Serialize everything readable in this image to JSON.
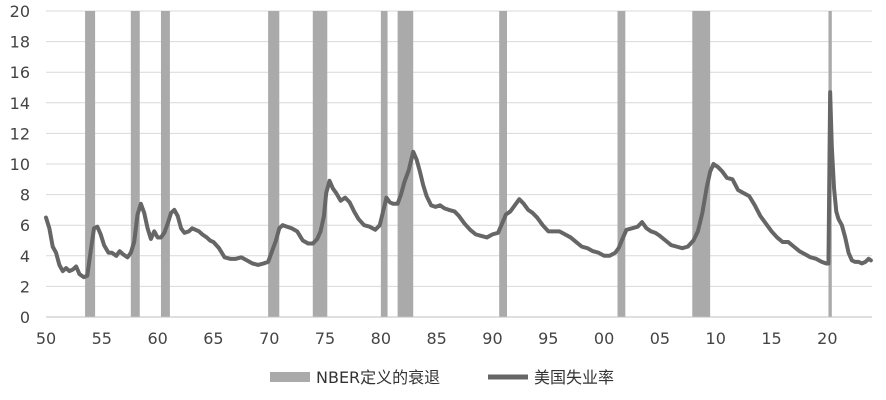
{
  "chart_data": {
    "type": "line",
    "title": "",
    "xlabel": "",
    "ylabel": "",
    "xlim": [
      1950,
      2024
    ],
    "ylim": [
      0,
      20
    ],
    "x_ticks": [
      {
        "value": 1950,
        "label": "50"
      },
      {
        "value": 1955,
        "label": "55"
      },
      {
        "value": 1960,
        "label": "60"
      },
      {
        "value": 1965,
        "label": "65"
      },
      {
        "value": 1970,
        "label": "70"
      },
      {
        "value": 1975,
        "label": "75"
      },
      {
        "value": 1980,
        "label": "80"
      },
      {
        "value": 1985,
        "label": "85"
      },
      {
        "value": 1990,
        "label": "90"
      },
      {
        "value": 1995,
        "label": "95"
      },
      {
        "value": 2000,
        "label": "00"
      },
      {
        "value": 2005,
        "label": "05"
      },
      {
        "value": 2010,
        "label": "10"
      },
      {
        "value": 2015,
        "label": "15"
      },
      {
        "value": 2020,
        "label": "20"
      }
    ],
    "y_ticks": [
      {
        "value": 0,
        "label": "0"
      },
      {
        "value": 2,
        "label": "2"
      },
      {
        "value": 4,
        "label": "4"
      },
      {
        "value": 6,
        "label": "6"
      },
      {
        "value": 8,
        "label": "8"
      },
      {
        "value": 10,
        "label": "10"
      },
      {
        "value": 12,
        "label": "12"
      },
      {
        "value": 14,
        "label": "14"
      },
      {
        "value": 16,
        "label": "16"
      },
      {
        "value": 18,
        "label": "18"
      },
      {
        "value": 20,
        "label": "20"
      }
    ],
    "grid": "horizontal",
    "legend_position": "bottom",
    "recessions": {
      "name": "NBER定义的衰退",
      "color": "#aaaaaa",
      "periods": [
        [
          1953.5,
          1954.4
        ],
        [
          1957.6,
          1958.4
        ],
        [
          1960.3,
          1961.1
        ],
        [
          1969.9,
          1970.9
        ],
        [
          1973.9,
          1975.2
        ],
        [
          1980.0,
          1980.6
        ],
        [
          1981.5,
          1982.9
        ],
        [
          1990.6,
          1991.3
        ],
        [
          2001.2,
          2001.9
        ],
        [
          2007.9,
          2009.5
        ],
        [
          2020.1,
          2020.4
        ]
      ]
    },
    "series": [
      {
        "name": "美国失业率",
        "color": "#666666",
        "points": [
          [
            1950.0,
            6.5
          ],
          [
            1950.3,
            5.8
          ],
          [
            1950.6,
            4.6
          ],
          [
            1950.9,
            4.2
          ],
          [
            1951.2,
            3.4
          ],
          [
            1951.5,
            3.0
          ],
          [
            1951.8,
            3.2
          ],
          [
            1952.1,
            3.0
          ],
          [
            1952.4,
            3.1
          ],
          [
            1952.7,
            3.3
          ],
          [
            1953.0,
            2.8
          ],
          [
            1953.4,
            2.6
          ],
          [
            1953.7,
            2.7
          ],
          [
            1954.0,
            4.3
          ],
          [
            1954.3,
            5.8
          ],
          [
            1954.6,
            5.9
          ],
          [
            1954.9,
            5.4
          ],
          [
            1955.2,
            4.7
          ],
          [
            1955.6,
            4.2
          ],
          [
            1955.9,
            4.2
          ],
          [
            1956.3,
            4.0
          ],
          [
            1956.6,
            4.3
          ],
          [
            1956.9,
            4.1
          ],
          [
            1957.3,
            3.9
          ],
          [
            1957.6,
            4.2
          ],
          [
            1957.9,
            4.9
          ],
          [
            1958.2,
            6.7
          ],
          [
            1958.5,
            7.4
          ],
          [
            1958.8,
            6.8
          ],
          [
            1959.1,
            5.8
          ],
          [
            1959.4,
            5.1
          ],
          [
            1959.7,
            5.6
          ],
          [
            1960.0,
            5.2
          ],
          [
            1960.3,
            5.2
          ],
          [
            1960.6,
            5.5
          ],
          [
            1960.9,
            6.1
          ],
          [
            1961.2,
            6.8
          ],
          [
            1961.5,
            7.0
          ],
          [
            1961.8,
            6.6
          ],
          [
            1962.1,
            5.8
          ],
          [
            1962.4,
            5.5
          ],
          [
            1962.8,
            5.6
          ],
          [
            1963.1,
            5.8
          ],
          [
            1963.4,
            5.7
          ],
          [
            1963.7,
            5.6
          ],
          [
            1964.0,
            5.4
          ],
          [
            1964.4,
            5.2
          ],
          [
            1964.7,
            5.0
          ],
          [
            1965.0,
            4.9
          ],
          [
            1965.5,
            4.5
          ],
          [
            1966.0,
            3.9
          ],
          [
            1966.5,
            3.8
          ],
          [
            1967.0,
            3.8
          ],
          [
            1967.5,
            3.9
          ],
          [
            1968.0,
            3.7
          ],
          [
            1968.5,
            3.5
          ],
          [
            1969.0,
            3.4
          ],
          [
            1969.5,
            3.5
          ],
          [
            1969.9,
            3.6
          ],
          [
            1970.3,
            4.4
          ],
          [
            1970.6,
            5.0
          ],
          [
            1970.9,
            5.8
          ],
          [
            1971.2,
            6.0
          ],
          [
            1971.6,
            5.9
          ],
          [
            1972.0,
            5.8
          ],
          [
            1972.5,
            5.6
          ],
          [
            1973.0,
            5.0
          ],
          [
            1973.5,
            4.8
          ],
          [
            1973.9,
            4.8
          ],
          [
            1974.3,
            5.1
          ],
          [
            1974.6,
            5.6
          ],
          [
            1974.9,
            6.6
          ],
          [
            1975.1,
            8.1
          ],
          [
            1975.4,
            8.9
          ],
          [
            1975.7,
            8.4
          ],
          [
            1976.0,
            8.1
          ],
          [
            1976.4,
            7.6
          ],
          [
            1976.8,
            7.8
          ],
          [
            1977.2,
            7.5
          ],
          [
            1977.6,
            6.9
          ],
          [
            1978.0,
            6.4
          ],
          [
            1978.5,
            6.0
          ],
          [
            1979.0,
            5.9
          ],
          [
            1979.5,
            5.7
          ],
          [
            1979.9,
            6.0
          ],
          [
            1980.2,
            6.9
          ],
          [
            1980.5,
            7.8
          ],
          [
            1980.8,
            7.5
          ],
          [
            1981.1,
            7.4
          ],
          [
            1981.5,
            7.4
          ],
          [
            1981.8,
            8.0
          ],
          [
            1982.1,
            8.8
          ],
          [
            1982.5,
            9.6
          ],
          [
            1982.9,
            10.8
          ],
          [
            1983.2,
            10.3
          ],
          [
            1983.5,
            9.5
          ],
          [
            1983.8,
            8.6
          ],
          [
            1984.1,
            7.9
          ],
          [
            1984.5,
            7.3
          ],
          [
            1984.9,
            7.2
          ],
          [
            1985.3,
            7.3
          ],
          [
            1985.7,
            7.1
          ],
          [
            1986.1,
            7.0
          ],
          [
            1986.6,
            6.9
          ],
          [
            1987.0,
            6.6
          ],
          [
            1987.5,
            6.1
          ],
          [
            1988.0,
            5.7
          ],
          [
            1988.5,
            5.4
          ],
          [
            1989.0,
            5.3
          ],
          [
            1989.5,
            5.2
          ],
          [
            1990.0,
            5.4
          ],
          [
            1990.5,
            5.5
          ],
          [
            1990.8,
            6.0
          ],
          [
            1991.2,
            6.7
          ],
          [
            1991.6,
            6.9
          ],
          [
            1992.0,
            7.3
          ],
          [
            1992.4,
            7.7
          ],
          [
            1992.8,
            7.4
          ],
          [
            1993.2,
            7.0
          ],
          [
            1993.6,
            6.8
          ],
          [
            1994.0,
            6.5
          ],
          [
            1994.5,
            6.0
          ],
          [
            1995.0,
            5.6
          ],
          [
            1995.5,
            5.6
          ],
          [
            1996.0,
            5.6
          ],
          [
            1996.5,
            5.4
          ],
          [
            1997.0,
            5.2
          ],
          [
            1997.5,
            4.9
          ],
          [
            1998.0,
            4.6
          ],
          [
            1998.5,
            4.5
          ],
          [
            1999.0,
            4.3
          ],
          [
            1999.5,
            4.2
          ],
          [
            2000.0,
            4.0
          ],
          [
            2000.5,
            4.0
          ],
          [
            2001.0,
            4.2
          ],
          [
            2001.3,
            4.5
          ],
          [
            2001.7,
            5.2
          ],
          [
            2002.0,
            5.7
          ],
          [
            2002.5,
            5.8
          ],
          [
            2003.0,
            5.9
          ],
          [
            2003.4,
            6.2
          ],
          [
            2003.8,
            5.8
          ],
          [
            2004.2,
            5.6
          ],
          [
            2004.6,
            5.5
          ],
          [
            2005.0,
            5.3
          ],
          [
            2005.5,
            5.0
          ],
          [
            2006.0,
            4.7
          ],
          [
            2006.5,
            4.6
          ],
          [
            2007.0,
            4.5
          ],
          [
            2007.5,
            4.6
          ],
          [
            2008.0,
            5.0
          ],
          [
            2008.4,
            5.6
          ],
          [
            2008.8,
            6.8
          ],
          [
            2009.2,
            8.5
          ],
          [
            2009.5,
            9.5
          ],
          [
            2009.8,
            10.0
          ],
          [
            2010.2,
            9.8
          ],
          [
            2010.6,
            9.5
          ],
          [
            2011.0,
            9.1
          ],
          [
            2011.5,
            9.0
          ],
          [
            2012.0,
            8.3
          ],
          [
            2012.5,
            8.1
          ],
          [
            2013.0,
            7.9
          ],
          [
            2013.5,
            7.3
          ],
          [
            2014.0,
            6.6
          ],
          [
            2014.5,
            6.1
          ],
          [
            2015.0,
            5.6
          ],
          [
            2015.5,
            5.2
          ],
          [
            2016.0,
            4.9
          ],
          [
            2016.5,
            4.9
          ],
          [
            2017.0,
            4.6
          ],
          [
            2017.5,
            4.3
          ],
          [
            2018.0,
            4.1
          ],
          [
            2018.5,
            3.9
          ],
          [
            2019.0,
            3.8
          ],
          [
            2019.5,
            3.6
          ],
          [
            2019.9,
            3.5
          ],
          [
            2020.1,
            3.5
          ],
          [
            2020.25,
            14.7
          ],
          [
            2020.4,
            11.1
          ],
          [
            2020.6,
            8.4
          ],
          [
            2020.8,
            6.9
          ],
          [
            2021.0,
            6.4
          ],
          [
            2021.3,
            6.0
          ],
          [
            2021.6,
            5.2
          ],
          [
            2021.9,
            4.2
          ],
          [
            2022.2,
            3.7
          ],
          [
            2022.5,
            3.6
          ],
          [
            2022.8,
            3.6
          ],
          [
            2023.1,
            3.5
          ],
          [
            2023.4,
            3.6
          ],
          [
            2023.7,
            3.8
          ],
          [
            2023.9,
            3.7
          ]
        ]
      }
    ]
  }
}
